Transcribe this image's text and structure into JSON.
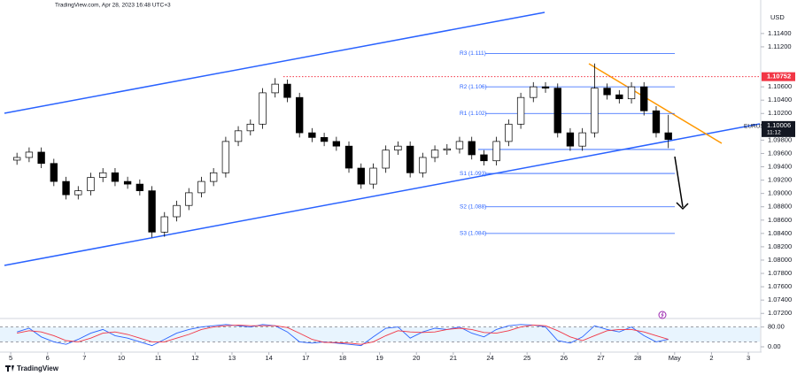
{
  "chart_data": {
    "type": "candlestick",
    "header": "TradingView.com, Apr 28, 2023 16:48 UTC+3",
    "currency": "USD",
    "symbol": "EURUSD",
    "footer": "TradingView",
    "colors": {
      "up": "#ffffff",
      "down": "#000000",
      "outline": "#000000"
    },
    "x": [
      0.17,
      0.5,
      0.83,
      1.17,
      1.5,
      1.83,
      2.17,
      2.5,
      2.83,
      3.17,
      3.5,
      3.83,
      4.17,
      4.5,
      4.83,
      5.17,
      5.5,
      5.83,
      6.17,
      6.5,
      6.83,
      7.17,
      7.5,
      7.83,
      8.17,
      8.5,
      8.83,
      9.17,
      9.5,
      9.83,
      10.17,
      10.5,
      10.83,
      11.17,
      11.5,
      11.83,
      12.17,
      12.5,
      12.83,
      13.17,
      13.5,
      13.83,
      14.17,
      14.5,
      14.83,
      15.17,
      15.5,
      15.83,
      16.17,
      16.5,
      16.83,
      17.17,
      17.5,
      17.83
    ],
    "open": [
      1.095,
      1.0954,
      1.0962,
      1.0945,
      1.0918,
      1.0898,
      1.0904,
      1.0924,
      1.0931,
      1.0918,
      1.0914,
      1.0904,
      1.0842,
      1.0865,
      1.0882,
      1.0901,
      1.0918,
      1.0931,
      1.0978,
      1.0994,
      1.1004,
      1.1051,
      1.1064,
      1.1044,
      1.0991,
      1.0984,
      1.0978,
      1.0971,
      1.0938,
      1.0914,
      1.0938,
      1.0965,
      1.0971,
      1.0931,
      1.0954,
      1.0965,
      1.0967,
      1.0978,
      1.0958,
      1.0949,
      1.0978,
      1.1004,
      1.1044,
      1.106,
      1.1058,
      1.0991,
      1.0971,
      1.0991,
      1.1058,
      1.1048,
      1.1042,
      1.106,
      1.1024,
      1.0991
    ],
    "high": [
      1.0961,
      1.0969,
      1.0969,
      1.0952,
      1.0925,
      1.0911,
      1.0931,
      1.0938,
      1.0938,
      1.0925,
      1.0921,
      1.0911,
      1.0872,
      1.0889,
      1.0908,
      1.0925,
      1.0938,
      1.0985,
      1.1001,
      1.1011,
      1.1058,
      1.1073,
      1.1071,
      1.1051,
      1.0998,
      1.0991,
      1.0985,
      1.0978,
      1.0945,
      1.0945,
      1.0972,
      1.0978,
      1.0978,
      1.0961,
      1.0972,
      1.0974,
      1.0985,
      1.0985,
      1.0965,
      1.0985,
      1.1011,
      1.1051,
      1.1067,
      1.1067,
      1.1065,
      1.0998,
      1.0998,
      1.1095,
      1.1065,
      1.1055,
      1.1067,
      1.1067,
      1.1031,
      1.1018
    ],
    "low": [
      1.0943,
      1.0947,
      1.0938,
      1.0911,
      1.0891,
      1.0891,
      1.0897,
      1.0917,
      1.0911,
      1.0907,
      1.0897,
      1.0834,
      1.0835,
      1.0858,
      1.0875,
      1.0894,
      1.0911,
      1.0924,
      1.0971,
      1.0987,
      1.0997,
      1.1044,
      1.1037,
      1.0984,
      1.0977,
      1.0971,
      1.0964,
      1.0931,
      1.0907,
      1.0907,
      1.0931,
      1.0958,
      1.0924,
      1.0924,
      1.0947,
      1.0958,
      1.096,
      1.0951,
      1.0942,
      1.0942,
      1.0971,
      1.0997,
      1.1037,
      1.1051,
      1.0984,
      1.0964,
      1.0964,
      1.0984,
      1.1041,
      1.1035,
      1.1035,
      1.1017,
      1.0984,
      1.0968
    ],
    "close": [
      1.0954,
      1.0962,
      1.0945,
      1.0918,
      1.0898,
      1.0904,
      1.0924,
      1.0931,
      1.0918,
      1.0914,
      1.0904,
      1.0842,
      1.0865,
      1.0882,
      1.0901,
      1.0918,
      1.0931,
      1.0978,
      1.0994,
      1.1004,
      1.1051,
      1.1064,
      1.1044,
      1.0991,
      1.0984,
      1.0978,
      1.0971,
      1.0938,
      1.0914,
      1.0938,
      1.0965,
      1.0971,
      1.0931,
      1.0954,
      1.0965,
      1.0967,
      1.0978,
      1.0958,
      1.0949,
      1.0978,
      1.1004,
      1.1044,
      1.106,
      1.1058,
      1.0991,
      1.0971,
      1.0991,
      1.1058,
      1.1048,
      1.1042,
      1.106,
      1.1024,
      1.0991,
      1.0981
    ],
    "xlim": [
      -0.29,
      20.31
    ],
    "xticks": [
      {
        "value": 0,
        "label": "5"
      },
      {
        "value": 1,
        "label": "6"
      },
      {
        "value": 2,
        "label": "7"
      },
      {
        "value": 3,
        "label": "10"
      },
      {
        "value": 4,
        "label": "11"
      },
      {
        "value": 5,
        "label": "12"
      },
      {
        "value": 6,
        "label": "13"
      },
      {
        "value": 7,
        "label": "14"
      },
      {
        "value": 8,
        "label": "17"
      },
      {
        "value": 9,
        "label": "18"
      },
      {
        "value": 10,
        "label": "19"
      },
      {
        "value": 11,
        "label": "20"
      },
      {
        "value": 12,
        "label": "21"
      },
      {
        "value": 13,
        "label": "24"
      },
      {
        "value": 14,
        "label": "25"
      },
      {
        "value": 15,
        "label": "26"
      },
      {
        "value": 16,
        "label": "27"
      },
      {
        "value": 17,
        "label": "28"
      },
      {
        "value": 18,
        "label": "May"
      },
      {
        "value": 19,
        "label": "2"
      },
      {
        "value": 20,
        "label": "3"
      }
    ],
    "ylim": [
      1.0715,
      1.1177
    ],
    "yticks": [
      {
        "value": 1.114,
        "label": "1.11400"
      },
      {
        "value": 1.112,
        "label": "1.11200"
      },
      {
        "value": 1.106,
        "label": "1.10600"
      },
      {
        "value": 1.104,
        "label": "1.10400"
      },
      {
        "value": 1.102,
        "label": "1.10200"
      },
      {
        "value": 1.098,
        "label": "1.09800"
      },
      {
        "value": 1.096,
        "label": "1.09600"
      },
      {
        "value": 1.094,
        "label": "1.09400"
      },
      {
        "value": 1.092,
        "label": "1.09200"
      },
      {
        "value": 1.09,
        "label": "1.09000"
      },
      {
        "value": 1.088,
        "label": "1.08800"
      },
      {
        "value": 1.086,
        "label": "1.08600"
      },
      {
        "value": 1.084,
        "label": "1.08400"
      },
      {
        "value": 1.082,
        "label": "1.08200"
      },
      {
        "value": 1.08,
        "label": "1.08000"
      },
      {
        "value": 1.078,
        "label": "1.07800"
      },
      {
        "value": 1.076,
        "label": "1.07600"
      },
      {
        "value": 1.074,
        "label": "1.07400"
      },
      {
        "value": 1.072,
        "label": "1.07200"
      }
    ],
    "marked_price": 1.10752,
    "last_price": 1.10006,
    "last_price_time": "11:12",
    "pivot": 1.0966,
    "pivot_levels": [
      {
        "label": "R3 (1.111)",
        "value": 1.111
      },
      {
        "label": "R2 (1.106)",
        "value": 1.106
      },
      {
        "label": "R1 (1.102)",
        "value": 1.102
      },
      {
        "label": "S1 (1.093)",
        "value": 1.093
      },
      {
        "label": "S2 (1.088)",
        "value": 1.088
      },
      {
        "label": "S3 (1.084)",
        "value": 1.084
      }
    ],
    "oscillator": {
      "ylim": [
        0,
        100
      ],
      "yticks": [
        {
          "value": 80,
          "label": "80.00"
        },
        {
          "value": 0,
          "label": "0.00"
        }
      ],
      "bands": [
        80,
        20
      ],
      "series": [
        {
          "color": "#2962ff",
          "values": [
            60,
            75,
            40,
            20,
            10,
            30,
            55,
            70,
            45,
            35,
            20,
            5,
            30,
            55,
            70,
            80,
            85,
            90,
            85,
            80,
            90,
            85,
            60,
            20,
            15,
            20,
            15,
            10,
            5,
            40,
            75,
            80,
            35,
            60,
            75,
            70,
            80,
            55,
            40,
            70,
            85,
            90,
            88,
            80,
            25,
            15,
            40,
            85,
            70,
            60,
            80,
            45,
            20,
            30
          ]
        },
        {
          "color": "#f23645",
          "values": [
            55,
            65,
            60,
            45,
            25,
            20,
            35,
            55,
            60,
            50,
            35,
            20,
            20,
            35,
            50,
            70,
            80,
            85,
            88,
            85,
            85,
            85,
            78,
            55,
            30,
            18,
            17,
            15,
            10,
            20,
            45,
            65,
            60,
            58,
            60,
            70,
            75,
            70,
            58,
            55,
            65,
            80,
            88,
            85,
            65,
            40,
            25,
            45,
            65,
            70,
            70,
            60,
            45,
            30
          ]
        }
      ]
    }
  }
}
